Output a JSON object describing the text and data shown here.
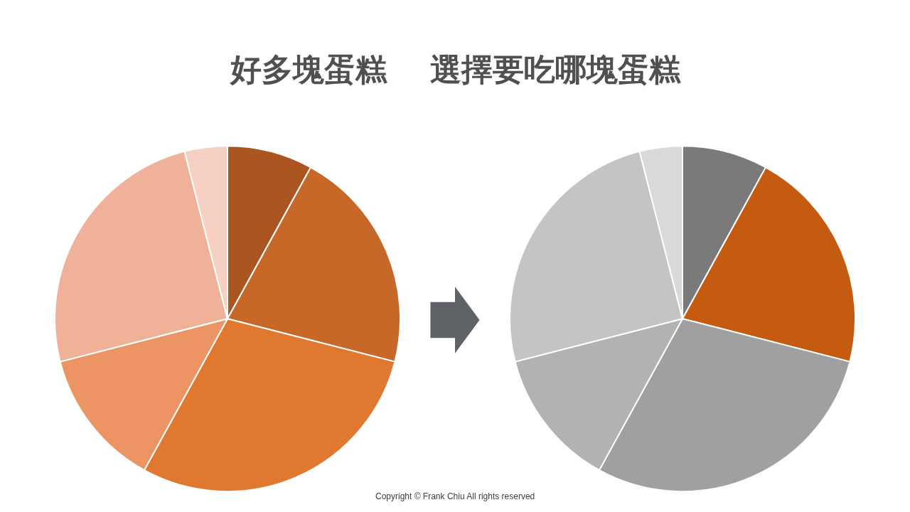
{
  "chart_data": [
    {
      "type": "pie",
      "title": "好多塊蛋糕",
      "categories": [
        null,
        null,
        null,
        null,
        null,
        null
      ],
      "values": [
        8,
        21,
        29,
        13,
        25,
        4
      ],
      "colors": [
        "#ab5620",
        "#c86828",
        "#e07830",
        "#ec9464",
        "#efb299",
        "#f5d0c3"
      ]
    },
    {
      "type": "pie",
      "title": "選擇要吃哪塊蛋糕",
      "categories": [
        null,
        null,
        null,
        null,
        null,
        null
      ],
      "values": [
        8,
        21,
        29,
        13,
        25,
        4
      ],
      "colors": [
        "#7a7a7a",
        "#c55a11",
        "#a0a0a0",
        "#b2b2b2",
        "#c4c4c4",
        "#d9d9d9"
      ],
      "annotations": [
        "Copyright © Frank Chiu All rights reserved"
      ]
    }
  ]
}
